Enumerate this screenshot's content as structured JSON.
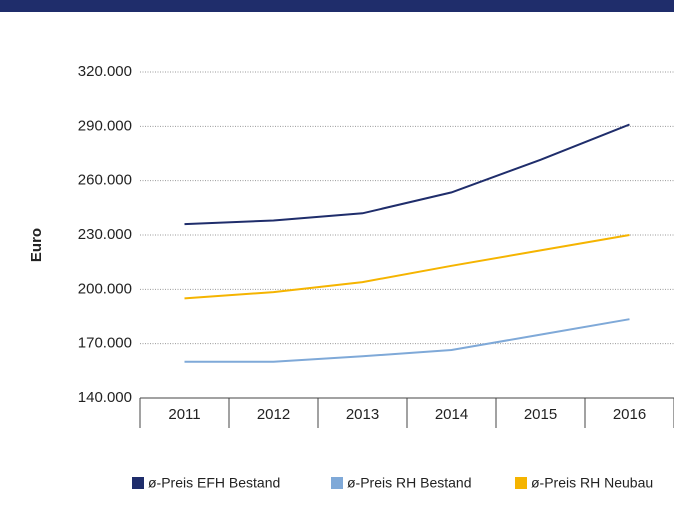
{
  "chart_data": {
    "type": "line",
    "y_label": "Euro",
    "categories": [
      "2011",
      "2012",
      "2013",
      "2014",
      "2015",
      "2016"
    ],
    "series": [
      {
        "name": "ø-Preis EFH Bestand",
        "color": "#1f2d6b",
        "values": [
          236000,
          238000,
          242000,
          253500,
          271500,
          291000
        ]
      },
      {
        "name": "ø-Preis RH Bestand",
        "color": "#7fa9d8",
        "values": [
          160000,
          160000,
          163000,
          166500,
          175000,
          183500
        ]
      },
      {
        "name": "ø-Preis RH Neubau",
        "color": "#f5b400",
        "values": [
          195000,
          198500,
          204000,
          213000,
          221500,
          230000
        ]
      }
    ],
    "ylim": [
      140000,
      320000
    ],
    "yticks": [
      {
        "value": 140000,
        "label": "140.000"
      },
      {
        "value": 170000,
        "label": "170.000"
      },
      {
        "value": 200000,
        "label": "200.000"
      },
      {
        "value": 230000,
        "label": "230.000"
      },
      {
        "value": 260000,
        "label": "260.000"
      },
      {
        "value": 290000,
        "label": "290.000"
      },
      {
        "value": 320000,
        "label": "320.000"
      }
    ],
    "grid": true
  }
}
